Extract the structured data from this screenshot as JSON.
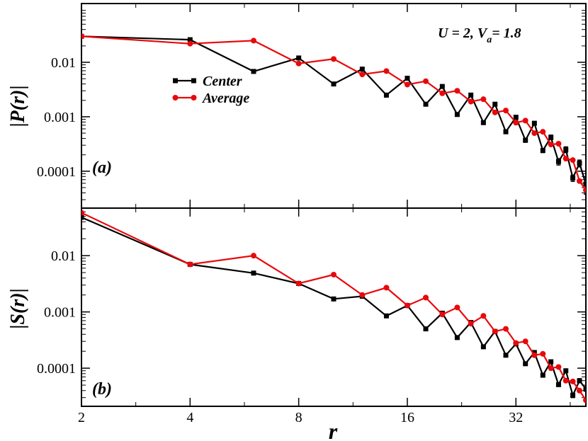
{
  "figure": {
    "annotation_prefix": "U = 2, V",
    "annotation_sub": "a",
    "annotation_suffix": "= 1.8",
    "xlabel": "r",
    "colors": {
      "center": "#000000",
      "average": "#e8090c",
      "axes": "#000000"
    }
  },
  "legend": {
    "center": "Center",
    "average": "Average"
  },
  "chart_data": [
    {
      "type": "line",
      "panel": "a",
      "panel_label": "(a)",
      "ylabel_prefix": "|",
      "ylabel_mid": "P(r)",
      "ylabel_suffix": "|",
      "xscale": "log2",
      "yscale": "log10",
      "xlim": [
        2,
        50
      ],
      "ylim": [
        2.1e-05,
        0.12
      ],
      "xticks": [
        2,
        4,
        8,
        16,
        32
      ],
      "xtick_labels": [
        "2",
        "4",
        "8",
        "16",
        "32"
      ],
      "yticks": [
        0.0001,
        0.001,
        0.01
      ],
      "ytick_labels": [
        "0.0001",
        "0.001",
        "0.01"
      ],
      "series": [
        {
          "name": "Center",
          "marker": "square",
          "x": [
            2,
            4,
            6,
            8,
            10,
            12,
            14,
            16,
            18,
            20,
            22,
            24,
            26,
            28,
            30,
            32,
            34,
            36,
            38,
            40,
            42,
            44,
            46,
            48,
            50
          ],
          "values": [
            0.03,
            0.026,
            0.0068,
            0.012,
            0.004,
            0.0075,
            0.0025,
            0.0051,
            0.0017,
            0.0036,
            0.0011,
            0.0025,
            0.00078,
            0.0017,
            0.00053,
            0.00098,
            0.00037,
            0.00076,
            0.00024,
            0.00042,
            0.00015,
            0.00025,
            7.5e-05,
            0.00014,
            5.8e-05
          ],
          "errors": [
            0.0003,
            0.0006,
            0.0003,
            0.0004,
            0.0002,
            0.0003,
            0.0002,
            0.0002,
            0.0001,
            0.00015,
            6e-05,
            0.0001,
            5e-05,
            8e-05,
            4e-05,
            6e-05,
            3e-05,
            5e-05,
            2e-05,
            4e-05,
            2e-05,
            3e-05,
            1e-05,
            2e-05,
            2e-05
          ]
        },
        {
          "name": "Average",
          "marker": "circle",
          "x": [
            2,
            4,
            6,
            8,
            10,
            12,
            14,
            16,
            18,
            20,
            22,
            24,
            26,
            28,
            30,
            32,
            34,
            36,
            38,
            40,
            42,
            44,
            46,
            48,
            50
          ],
          "values": [
            0.03,
            0.022,
            0.025,
            0.0095,
            0.0115,
            0.006,
            0.0069,
            0.0039,
            0.0045,
            0.0027,
            0.003,
            0.0019,
            0.0021,
            0.0012,
            0.0013,
            0.00078,
            0.00085,
            0.0005,
            0.00053,
            0.00031,
            0.00032,
            0.00017,
            0.00016,
            6.6e-05,
            4.5e-05
          ],
          "errors": [
            0,
            0,
            0,
            0,
            0,
            0,
            0,
            0,
            0,
            0,
            0,
            0,
            0,
            0,
            0,
            0,
            0,
            0,
            0,
            0,
            0,
            0,
            0,
            0,
            0
          ]
        }
      ]
    },
    {
      "type": "line",
      "panel": "b",
      "panel_label": "(b)",
      "ylabel_prefix": "|",
      "ylabel_mid": "S(r)",
      "ylabel_suffix": "|",
      "xscale": "log2",
      "yscale": "log10",
      "xlim": [
        2,
        50
      ],
      "ylim": [
        2.1e-05,
        0.07
      ],
      "xticks": [
        2,
        4,
        8,
        16,
        32
      ],
      "xtick_labels": [
        "2",
        "4",
        "8",
        "16",
        "32"
      ],
      "yticks": [
        0.0001,
        0.001,
        0.01
      ],
      "ytick_labels": [
        "0.0001",
        "0.001",
        "0.01"
      ],
      "series": [
        {
          "name": "Center",
          "marker": "square",
          "x": [
            2,
            4,
            6,
            8,
            10,
            12,
            14,
            16,
            18,
            20,
            22,
            24,
            26,
            28,
            30,
            32,
            34,
            36,
            38,
            40,
            42,
            44,
            46,
            48,
            50
          ],
          "values": [
            0.048,
            0.007,
            0.0049,
            0.0032,
            0.0017,
            0.0019,
            0.00085,
            0.0013,
            0.0005,
            0.00095,
            0.00035,
            0.00065,
            0.00024,
            0.00045,
            0.00017,
            0.00027,
            0.00012,
            0.00019,
            7.5e-05,
            0.00013,
            5.1e-05,
            9e-05,
            3.3e-05,
            6e-05,
            4.3e-05
          ],
          "errors": [
            0.001,
            0.0002,
            0.0002,
            0.0001,
            5e-05,
            6e-05,
            3e-05,
            4e-05,
            2e-05,
            3e-05,
            1e-05,
            2e-05,
            1e-05,
            2e-05,
            1e-05,
            1e-05,
            5e-06,
            1e-05,
            4e-06,
            6e-06,
            3e-06,
            5e-06,
            3e-06,
            5e-06,
            4e-06
          ]
        },
        {
          "name": "Average",
          "marker": "circle",
          "x": [
            2,
            4,
            6,
            8,
            10,
            12,
            14,
            16,
            18,
            20,
            22,
            24,
            26,
            28,
            30,
            32,
            34,
            36,
            38,
            40,
            42,
            44,
            46,
            48,
            50
          ],
          "values": [
            0.058,
            0.007,
            0.01,
            0.0032,
            0.0046,
            0.002,
            0.0027,
            0.0013,
            0.0018,
            0.0009,
            0.0012,
            0.00062,
            0.00085,
            0.00045,
            0.0005,
            0.00028,
            0.0003,
            0.00017,
            0.00018,
            0.0001,
            0.000105,
            6e-05,
            5.8e-05,
            4e-05,
            2.7e-05
          ],
          "errors": [
            0,
            0,
            0,
            0,
            0,
            0,
            0,
            0,
            0,
            0,
            0,
            0,
            0,
            0,
            0,
            0,
            0,
            0,
            0,
            0,
            0,
            0,
            0,
            0,
            0
          ]
        }
      ]
    }
  ]
}
